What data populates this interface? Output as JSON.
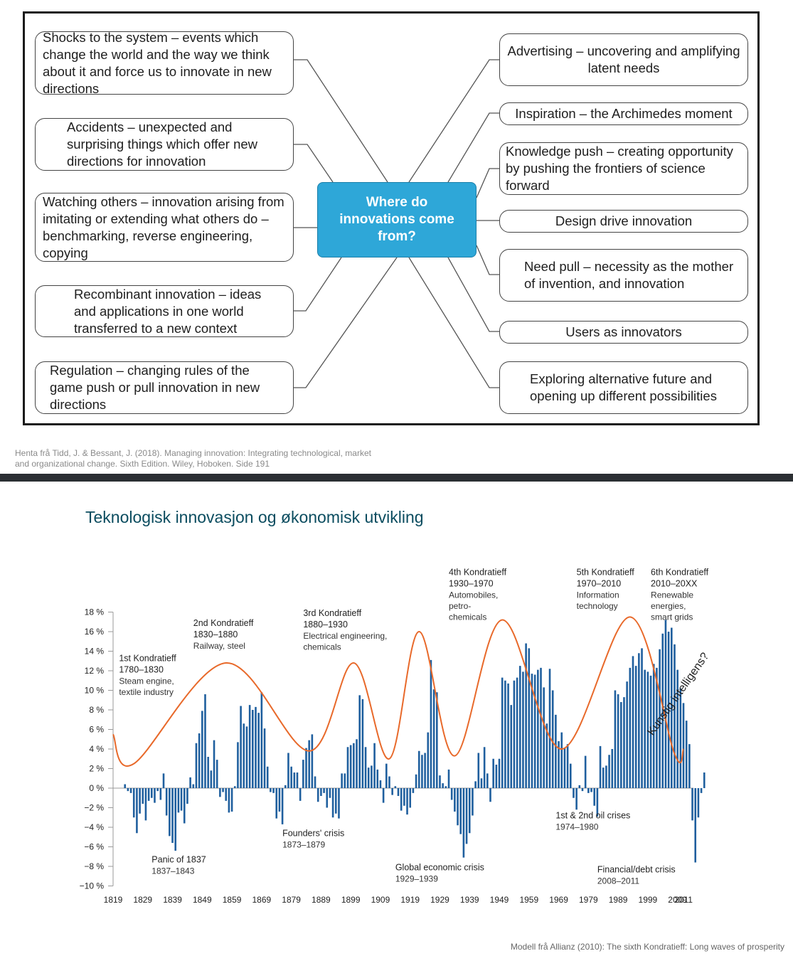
{
  "diagram": {
    "hub": "Where do\ninnovations come\nfrom?",
    "left": [
      "Shocks to the system – events which change the world and the way we think about it and force us to innovate in new directions",
      "Accidents – unexpected and surprising things which offer new directions for innovation",
      "Watching others – innovation arising from imitating or extending what others do – benchmarking, reverse engineering, copying",
      "Recombinant innovation – ideas and applications in one world transferred to a new context",
      "Regulation – changing rules of the game push or pull innovation in new directions"
    ],
    "right": [
      "Advertising – uncovering and amplifying latent needs",
      "Inspiration – the Archimedes moment",
      "Knowledge push – creating opportunity by pushing the frontiers of science forward",
      "Design drive innovation",
      "Need pull – necessity as the mother of invention, and innovation",
      "Users as innovators",
      "Exploring alternative future and opening up different possibilities"
    ]
  },
  "caption": "Henta frå Tidd, J. & Bessant, J. (2018). Managing innovation: Integrating technological, market and organizational change. Sixth Edition. Wiley, Hoboken. Side 191",
  "slide_title": "Teknologisk innovasjon og økonomisk utvikling",
  "credit": "Modell frå Allianz (2010): The sixth Kondratieff: Long waves of prosperity",
  "colors": {
    "hub": "#2ea7d8",
    "bars": "#1f5f9e",
    "wave": "#e8692a",
    "title": "#0b4c5f"
  },
  "chart_data": {
    "type": "bar",
    "title": "",
    "ylim": [
      -10,
      18
    ],
    "yticks": [
      "18 %",
      "16 %",
      "14 %",
      "12 %",
      "10 %",
      "8 %",
      "6 %",
      "4 %",
      "2 %",
      "0 %",
      "−2 %",
      "−4 %",
      "−6 %",
      "−8 %",
      "−10 %"
    ],
    "xticks": [
      "1819",
      "1829",
      "1839",
      "1849",
      "1859",
      "1869",
      "1879",
      "1889",
      "1899",
      "1909",
      "1919",
      "1929",
      "1939",
      "1949",
      "1959",
      "1969",
      "1979",
      "1989",
      "1999",
      "2009",
      "2011"
    ],
    "bars": {
      "start_year": 1823,
      "values": [
        0.4,
        -0.3,
        -0.5,
        -3,
        -4.6,
        -2.6,
        -1.6,
        -3.3,
        -1.3,
        -1,
        -1.5,
        -0.3,
        -1.2,
        1.5,
        -2.8,
        -4.9,
        -5.6,
        -6.4,
        -2.5,
        -2.3,
        -3.6,
        -1.6,
        1.1,
        0.4,
        4.6,
        5.6,
        7.9,
        9.6,
        3.2,
        1.8,
        4.9,
        2.9,
        -0.9,
        -0.4,
        -1.3,
        -2.5,
        -2.4,
        0.2,
        4.7,
        8.4,
        6.6,
        6.3,
        8.5,
        8,
        8.3,
        7.7,
        9.8,
        6.1,
        2.2,
        -0.4,
        -0.5,
        -3.1,
        -2.4,
        -3.7,
        0.3,
        3.6,
        2.2,
        1.6,
        1.6,
        -1.3,
        2.9,
        4.1,
        4.9,
        5.5,
        1.2,
        -1.4,
        -0.8,
        -0.5,
        -2,
        -1,
        -3,
        -2.6,
        -3.1,
        1.5,
        1.5,
        4.2,
        4.4,
        4.6,
        5,
        9.5,
        9.1,
        4.2,
        2.1,
        2.3,
        4.6,
        1.9,
        0.8,
        -1.5,
        2.5,
        1.2,
        -0.7,
        0.2,
        -0.8,
        -2.3,
        -1.8,
        -2.7,
        -2,
        -0.5,
        1.4,
        3.8,
        3.4,
        3.6,
        5.7,
        13.1,
        10.1,
        9.8,
        1.3,
        0.5,
        0.2,
        1.9,
        -1.2,
        -2.4,
        -3.8,
        -4.7,
        -7.1,
        -5.7,
        -4.6,
        -2.8,
        0.7,
        3.6,
        1,
        4.2,
        1.5,
        -1.4,
        3,
        2.4,
        3,
        11.3,
        11,
        10.7,
        8.5,
        11,
        11.3,
        12.5,
        11.9,
        14.8,
        14.3,
        11.7,
        11.6,
        12.1,
        12.3,
        10.3,
        6.6,
        12.2,
        10,
        7.5,
        4.8,
        5.7,
        4.1,
        4.5,
        2.5,
        -1,
        -2.2,
        0.3,
        -0.3,
        3.3,
        -0.5,
        -0.4,
        -1.8,
        -2.9,
        4.3,
        2.1,
        2.3,
        3.4,
        4,
        10,
        9.6,
        8.8,
        9.3,
        10.9,
        12.3,
        13.5,
        12.5,
        13.8,
        14.3,
        12.1,
        11.9,
        11.5,
        12.7,
        12.3,
        14.2,
        15.8,
        17.2,
        16,
        16.4,
        14.7,
        12.1,
        10.2,
        8.7,
        6.9,
        4.5,
        -3.3,
        -7.6,
        -3,
        -0.5,
        1.6
      ]
    },
    "wave": [
      {
        "year": 1819,
        "value": 5.5
      },
      {
        "year": 1826,
        "value": 2.5
      },
      {
        "year": 1857,
        "value": 12.8
      },
      {
        "year": 1885,
        "value": 3.8
      },
      {
        "year": 1900,
        "value": 12.8
      },
      {
        "year": 1912,
        "value": 3
      },
      {
        "year": 1922,
        "value": 16
      },
      {
        "year": 1934,
        "value": 3.3
      },
      {
        "year": 1950,
        "value": 17.2
      },
      {
        "year": 1970,
        "value": 4
      },
      {
        "year": 1993,
        "value": 17.5
      },
      {
        "year": 2008,
        "value": 3.5
      },
      {
        "year": 2011,
        "value": 4
      }
    ],
    "annotations": [
      {
        "title": "1st Kondratieff",
        "years": "1780–1830",
        "desc": [
          "Steam engine,",
          "textile industry"
        ],
        "year": 1821,
        "value": 13
      },
      {
        "title": "2nd Kondratieff",
        "years": "1830–1880",
        "desc": [
          "Railway, steel"
        ],
        "year": 1846,
        "value": 16.6
      },
      {
        "title": "3rd Kondratieff",
        "years": "1880–1930",
        "desc": [
          "Electrical engineering,",
          "chemicals"
        ],
        "year": 1883,
        "value": 17.6
      },
      {
        "title": "4th Kondratieff",
        "years": "1930–1970",
        "desc": [
          "Automobiles,",
          "petro-",
          "chemicals"
        ],
        "year": 1932,
        "value": 21.8
      },
      {
        "title": "5th Kondratieff",
        "years": "1970–2010",
        "desc": [
          "Information",
          "technology"
        ],
        "year": 1975,
        "value": 21.8
      },
      {
        "title": "6th Kondratieff",
        "years": "2010–20XX",
        "desc": [
          "Renewable",
          "energies,",
          "smart grids"
        ],
        "year": 2000,
        "value": 21.8
      }
    ],
    "crises": [
      {
        "label": "Panic of 1837",
        "years": "1837–1843",
        "year": 1832,
        "value": -7.6
      },
      {
        "label": "Founders' crisis",
        "years": "1873–1879",
        "year": 1876,
        "value": -4.9
      },
      {
        "label": "Global economic crisis",
        "years": "1929–1939",
        "year": 1914,
        "value": -8.4
      },
      {
        "label": "1st & 2nd oil crises",
        "years": "1974–1980",
        "year": 1968,
        "value": -3.1
      },
      {
        "label": "Financial/debt crisis",
        "years": "2008–2011",
        "year": 1982,
        "value": -8.6
      }
    ],
    "side_label": "Kunstig intelligens?"
  }
}
